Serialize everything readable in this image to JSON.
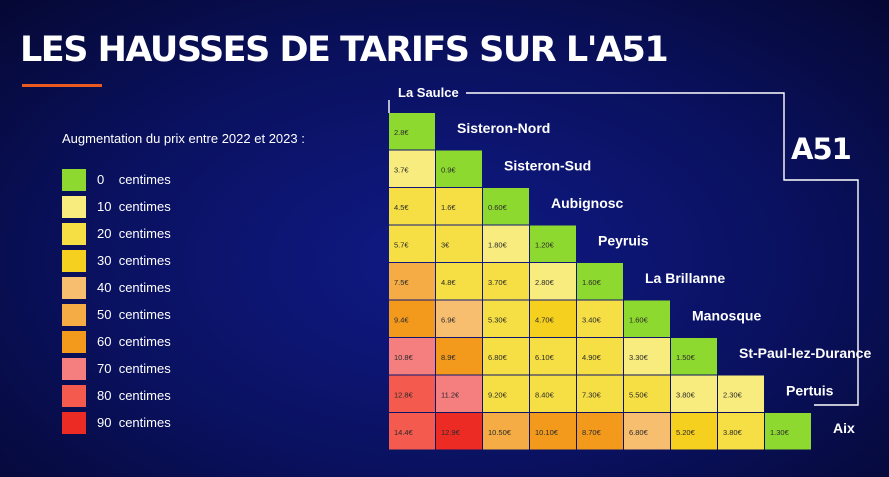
{
  "title": "LES HAUSSES DE TARIFS SUR L'A51",
  "brand": "A51",
  "legend": {
    "heading": "Augmentation du prix entre 2022 et 2023 :",
    "items": [
      {
        "value": "0",
        "unit": "centimes",
        "color": "#8ed930"
      },
      {
        "value": "10",
        "unit": "centimes",
        "color": "#f8ec7e"
      },
      {
        "value": "20",
        "unit": "centimes",
        "color": "#f6df45"
      },
      {
        "value": "30",
        "unit": "centimes",
        "color": "#f5d01f"
      },
      {
        "value": "40",
        "unit": "centimes",
        "color": "#f8be70"
      },
      {
        "value": "50",
        "unit": "centimes",
        "color": "#f6ac45"
      },
      {
        "value": "60",
        "unit": "centimes",
        "color": "#f39a1d"
      },
      {
        "value": "70",
        "unit": "centimes",
        "color": "#f57e7e"
      },
      {
        "value": "80",
        "unit": "centimes",
        "color": "#f45a4e"
      },
      {
        "value": "90",
        "unit": "centimes",
        "color": "#ed2b25"
      }
    ]
  },
  "chart_data": {
    "type": "table",
    "first_station": "La Saulce",
    "stations": [
      "Sisteron-Nord",
      "Sisteron-Sud",
      "Aubignosc",
      "Peyruis",
      "La Brillanne",
      "Manosque",
      "St-Paul-lez-Durance",
      "Pertuis",
      "Aix"
    ],
    "rows": [
      {
        "station": "Sisteron-Nord",
        "cells": [
          {
            "text": "2.8€",
            "increase": 0
          }
        ]
      },
      {
        "station": "Sisteron-Sud",
        "cells": [
          {
            "text": "3.7€",
            "increase": 10
          },
          {
            "text": "0.9€",
            "increase": 0
          }
        ]
      },
      {
        "station": "Aubignosc",
        "cells": [
          {
            "text": "4.5€",
            "increase": 20
          },
          {
            "text": "1.6€",
            "increase": 20
          },
          {
            "text": "0.60€",
            "increase": 0
          }
        ]
      },
      {
        "station": "Peyruis",
        "cells": [
          {
            "text": "5.7€",
            "increase": 20
          },
          {
            "text": "3€",
            "increase": 20
          },
          {
            "text": "1.80€",
            "increase": 10
          },
          {
            "text": "1.20€",
            "increase": 0
          }
        ]
      },
      {
        "station": "La Brillanne",
        "cells": [
          {
            "text": "7.5€",
            "increase": 50
          },
          {
            "text": "4.8€",
            "increase": 20
          },
          {
            "text": "3.70€",
            "increase": 20
          },
          {
            "text": "2.80€",
            "increase": 10
          },
          {
            "text": "1.60€",
            "increase": 0
          }
        ]
      },
      {
        "station": "Manosque",
        "cells": [
          {
            "text": "9.4€",
            "increase": 60
          },
          {
            "text": "6.9€",
            "increase": 40
          },
          {
            "text": "5.30€",
            "increase": 20
          },
          {
            "text": "4.70€",
            "increase": 30
          },
          {
            "text": "3.40€",
            "increase": 20
          },
          {
            "text": "1.60€",
            "increase": 0
          }
        ]
      },
      {
        "station": "St-Paul-lez-Durance",
        "cells": [
          {
            "text": "10.8€",
            "increase": 70
          },
          {
            "text": "8.9€",
            "increase": 60
          },
          {
            "text": "6.80€",
            "increase": 20
          },
          {
            "text": "6.10€",
            "increase": 20
          },
          {
            "text": "4.90€",
            "increase": 20
          },
          {
            "text": "3.30€",
            "increase": 10
          },
          {
            "text": "1.50€",
            "increase": 0
          }
        ]
      },
      {
        "station": "Pertuis",
        "cells": [
          {
            "text": "12.8€",
            "increase": 80
          },
          {
            "text": "11.2€",
            "increase": 70
          },
          {
            "text": "9.20€",
            "increase": 20
          },
          {
            "text": "8.40€",
            "increase": 20
          },
          {
            "text": "7.30€",
            "increase": 20
          },
          {
            "text": "5.50€",
            "increase": 20
          },
          {
            "text": "3.80€",
            "increase": 10
          },
          {
            "text": "2.30€",
            "increase": 10
          }
        ]
      },
      {
        "station": "Aix",
        "cells": [
          {
            "text": "14.4€",
            "increase": 80
          },
          {
            "text": "12.9€",
            "increase": 90
          },
          {
            "text": "10.50€",
            "increase": 50
          },
          {
            "text": "10.10€",
            "increase": 60
          },
          {
            "text": "8.70€",
            "increase": 60
          },
          {
            "text": "6.80€",
            "increase": 40
          },
          {
            "text": "5.20€",
            "increase": 30
          },
          {
            "text": "3.80€",
            "increase": 20
          },
          {
            "text": "1.30€",
            "increase": 0
          }
        ]
      }
    ]
  }
}
